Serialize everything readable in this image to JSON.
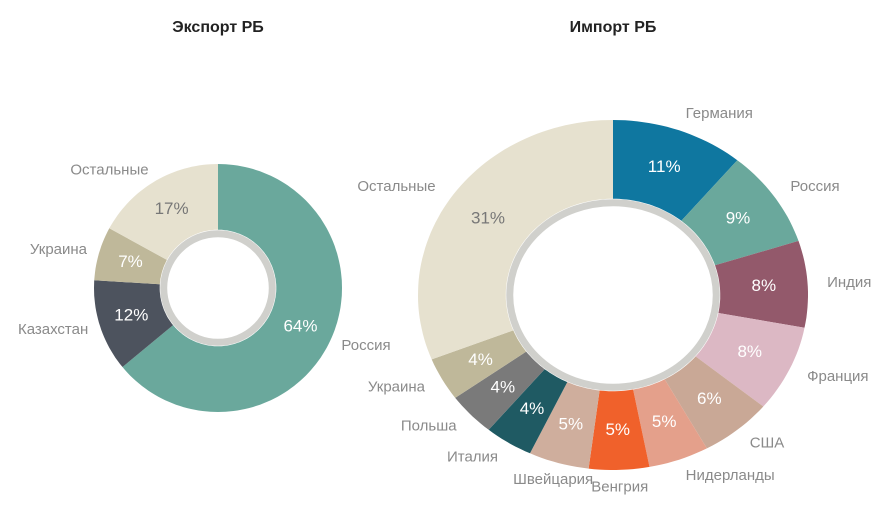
{
  "chart_data": [
    {
      "type": "pie",
      "title": "Экспорт РБ",
      "categories": [
        "Россия",
        "Казахстан",
        "Украина",
        "Остальные"
      ],
      "values": [
        64,
        12,
        7,
        17
      ],
      "value_labels": [
        "64%",
        "12%",
        "7%",
        "17%"
      ],
      "colors": [
        "#6aa89c",
        "#4d535e",
        "#bfb89a",
        "#e6e1cf"
      ]
    },
    {
      "type": "pie",
      "title": "Импорт РБ",
      "categories": [
        "Германия",
        "Россия",
        "Индия",
        "Франция",
        "США",
        "Нидерланды",
        "Венгрия",
        "Швейцария",
        "Италия",
        "Польша",
        "Украина",
        "Остальные"
      ],
      "values": [
        11,
        9,
        8,
        8,
        6,
        5,
        5,
        5,
        4,
        4,
        4,
        31
      ],
      "value_labels": [
        "11%",
        "9%",
        "8%",
        "8%",
        "6%",
        "5%",
        "5%",
        "5%",
        "4%",
        "4%",
        "4%",
        "31%"
      ],
      "colors": [
        "#0f77a0",
        "#6aa89c",
        "#93596b",
        "#dcb8c4",
        "#c9a896",
        "#e4a08b",
        "#f0612b",
        "#cfae9d",
        "#1f5a63",
        "#7a7a7a",
        "#bfb89a",
        "#e6e1cf"
      ]
    }
  ]
}
